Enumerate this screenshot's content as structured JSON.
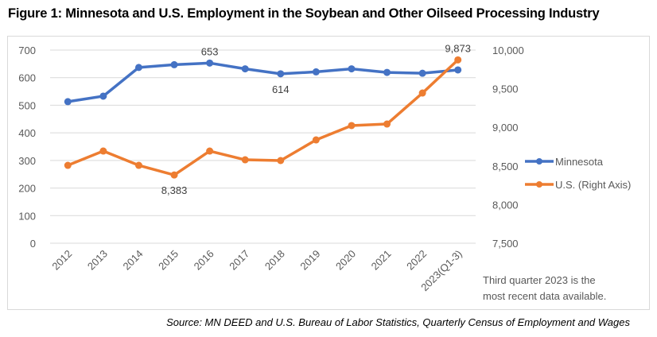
{
  "figure_title": "Figure 1:  Minnesota and U.S. Employment in the Soybean and Other Oilseed Processing Industry",
  "note_lines": [
    "Third quarter 2023 is the",
    "most recent data available."
  ],
  "source": "Source: MN DEED and U.S. Bureau of Labor Statistics, Quarterly Census of Employment and Wages",
  "chart_data": {
    "type": "line",
    "title": "Minnesota and U.S. Employment in the Soybean and Other Oilseed Processing Industry",
    "xlabel": "",
    "ylabel": "",
    "categories": [
      "2012",
      "2013",
      "2014",
      "2015",
      "2016",
      "2017",
      "2018",
      "2019",
      "2020",
      "2021",
      "2022",
      "2023(Q1-3)"
    ],
    "series": [
      {
        "name": "Minnesota",
        "axis": "left",
        "color": "#4472c4",
        "values": [
          513,
          533,
          637,
          647,
          653,
          632,
          614,
          621,
          632,
          619,
          616,
          628
        ]
      },
      {
        "name": "U.S. (Right Axis)",
        "axis": "right",
        "color": "#ed7d31",
        "values": [
          8508,
          8693,
          8508,
          8383,
          8693,
          8580,
          8570,
          8837,
          9023,
          9043,
          9444,
          9873
        ]
      }
    ],
    "left_axis": {
      "ylim": [
        0,
        700
      ],
      "ticks": [
        0,
        100,
        200,
        300,
        400,
        500,
        600,
        700
      ],
      "tick_labels": [
        "0",
        "100",
        "200",
        "300",
        "400",
        "500",
        "600",
        "700"
      ]
    },
    "right_axis": {
      "ylim": [
        7500,
        10000
      ],
      "ticks": [
        7500,
        8000,
        8500,
        9000,
        9500,
        10000
      ],
      "tick_labels": [
        "7,500",
        "8,000",
        "8,500",
        "9,000",
        "9,500",
        "10,000"
      ]
    },
    "data_labels": [
      {
        "series": 0,
        "index": 4,
        "text": "653",
        "position": "above"
      },
      {
        "series": 0,
        "index": 6,
        "text": "614",
        "position": "below"
      },
      {
        "series": 1,
        "index": 3,
        "text": "8,383",
        "position": "below"
      },
      {
        "series": 1,
        "index": 11,
        "text": "9,873",
        "position": "above"
      }
    ],
    "grid": true,
    "legend": {
      "position": "right",
      "entries": [
        "Minnesota",
        "U.S. (Right Axis)"
      ]
    }
  }
}
